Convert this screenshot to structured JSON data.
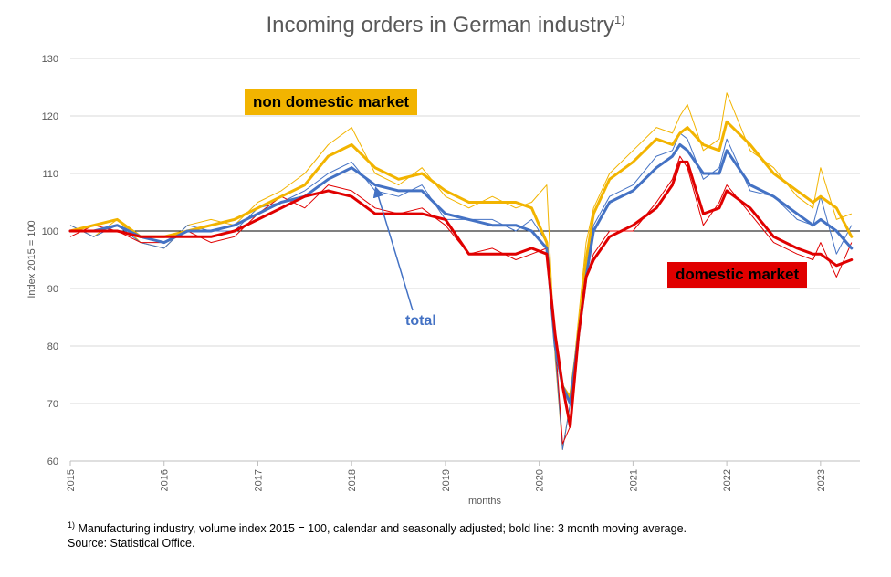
{
  "chart_data": {
    "type": "line",
    "title": "Incoming orders in German industry",
    "title_superscript": "1)",
    "ylabel": "Index 2015 = 100",
    "xlabel": "months",
    "ylim": [
      60,
      130
    ],
    "y_ticks": [
      60,
      70,
      80,
      90,
      100,
      110,
      120,
      130
    ],
    "x_range": [
      2015.0,
      2023.42
    ],
    "x_ticks": [
      "2015",
      "2016",
      "2017",
      "2018",
      "2019",
      "2020",
      "2021",
      "2022",
      "2023"
    ],
    "reference_line": 100,
    "grid": "horizontal",
    "annotations": [
      {
        "text": "non domestic market",
        "color": "#f2b400"
      },
      {
        "text": "domestic market",
        "color": "#e00000"
      },
      {
        "text": "total",
        "color": "#4472c4"
      }
    ],
    "x": [
      2015.0,
      2015.25,
      2015.5,
      2015.75,
      2016.0,
      2016.25,
      2016.5,
      2016.75,
      2017.0,
      2017.25,
      2017.5,
      2017.75,
      2018.0,
      2018.25,
      2018.5,
      2018.75,
      2019.0,
      2019.25,
      2019.5,
      2019.75,
      2019.92,
      2020.08,
      2020.17,
      2020.25,
      2020.33,
      2020.42,
      2020.5,
      2020.58,
      2020.75,
      2021.0,
      2021.25,
      2021.42,
      2021.5,
      2021.58,
      2021.75,
      2021.92,
      2022.0,
      2022.25,
      2022.5,
      2022.75,
      2022.92,
      2023.0,
      2023.17,
      2023.33
    ],
    "series": [
      {
        "name": "non domestic market",
        "color": "#f2b400",
        "values": [
          100,
          101,
          102,
          99,
          99,
          100,
          101,
          102,
          104,
          106,
          108,
          113,
          115,
          111,
          109,
          110,
          107,
          105,
          105,
          105,
          104,
          98,
          80,
          73,
          71,
          82,
          95,
          103,
          109,
          112,
          116,
          115,
          117,
          118,
          115,
          114,
          119,
          115,
          110,
          107,
          105,
          106,
          104,
          99
        ]
      },
      {
        "name": "total",
        "color": "#4472c4",
        "values": [
          100,
          100,
          101,
          99,
          98,
          100,
          100,
          101,
          103,
          105,
          106,
          109,
          111,
          108,
          107,
          107,
          103,
          102,
          101,
          101,
          100,
          97,
          80,
          73,
          70,
          82,
          92,
          100,
          105,
          107,
          111,
          113,
          115,
          114,
          110,
          110,
          114,
          108,
          106,
          103,
          101,
          102,
          100,
          97
        ]
      },
      {
        "name": "domestic market",
        "color": "#e00000",
        "values": [
          100,
          100,
          100,
          99,
          99,
          99,
          99,
          100,
          102,
          104,
          106,
          107,
          106,
          103,
          103,
          103,
          102,
          96,
          96,
          96,
          97,
          96,
          82,
          73,
          66,
          82,
          92,
          95,
          99,
          101,
          104,
          108,
          112,
          112,
          103,
          104,
          107,
          104,
          99,
          97,
          96,
          96,
          94,
          95
        ]
      }
    ],
    "monthly_series": [
      {
        "name": "non domestic market monthly",
        "color": "#f2b400",
        "values": [
          101,
          99,
          102,
          98,
          97,
          101,
          102,
          101,
          105,
          107,
          110,
          115,
          118,
          110,
          108,
          111,
          106,
          104,
          106,
          104,
          105,
          108,
          78,
          62,
          70,
          85,
          98,
          104,
          110,
          114,
          118,
          117,
          120,
          122,
          114,
          116,
          124,
          114,
          111,
          106,
          104,
          111,
          102,
          103
        ]
      },
      {
        "name": "total monthly",
        "color": "#4472c4",
        "values": [
          101,
          99,
          101,
          98,
          97,
          101,
          100,
          100,
          104,
          105,
          107,
          110,
          112,
          107,
          106,
          108,
          102,
          102,
          102,
          100,
          102,
          98,
          79,
          62,
          70,
          83,
          94,
          101,
          106,
          108,
          113,
          114,
          117,
          116,
          109,
          111,
          116,
          107,
          106,
          102,
          101,
          106,
          96,
          101
        ]
      },
      {
        "name": "domestic market monthly",
        "color": "#e00000",
        "values": [
          99,
          101,
          100,
          98,
          98,
          100,
          98,
          99,
          103,
          106,
          104,
          108,
          107,
          104,
          103,
          104,
          101,
          96,
          97,
          95,
          96,
          97,
          81,
          63,
          66,
          83,
          92,
          96,
          100,
          100,
          105,
          109,
          113,
          111,
          101,
          105,
          108,
          103,
          98,
          96,
          95,
          98,
          92,
          98
        ]
      }
    ]
  },
  "footnote": {
    "mark": "1)",
    "line1": "Manufacturing industry, volume index 2015 = 100, calendar and seasonally adjusted; bold line: 3 month moving average.",
    "line2": "Source: Statistical Office."
  }
}
